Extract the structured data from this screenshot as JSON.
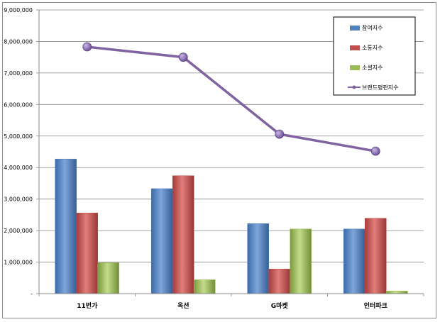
{
  "chart_data": {
    "type": "bar",
    "categories": [
      "11번가",
      "옥션",
      "G마켓",
      "인터파크"
    ],
    "series": [
      {
        "name": "참여지수",
        "kind": "bar",
        "color": "#4f81bd",
        "values": [
          4270000,
          3330000,
          2220000,
          2050000
        ]
      },
      {
        "name": "소통지수",
        "kind": "bar",
        "color": "#c0504d",
        "values": [
          2560000,
          3740000,
          780000,
          2390000
        ]
      },
      {
        "name": "소셜지수",
        "kind": "bar",
        "color": "#9bbb59",
        "values": [
          980000,
          440000,
          2050000,
          80000
        ]
      },
      {
        "name": "브랜드평판지수",
        "kind": "line",
        "color": "#8064a2",
        "values": [
          7830000,
          7500000,
          5060000,
          4520000
        ]
      }
    ],
    "yticks": [
      "-",
      "1,000,000",
      "2,000,000",
      "3,000,000",
      "4,000,000",
      "5,000,000",
      "6,000,000",
      "7,000,000",
      "8,000,000",
      "9,000,000"
    ],
    "ylim": [
      0,
      9000000
    ],
    "grid": true,
    "legend_position": "top-right"
  }
}
